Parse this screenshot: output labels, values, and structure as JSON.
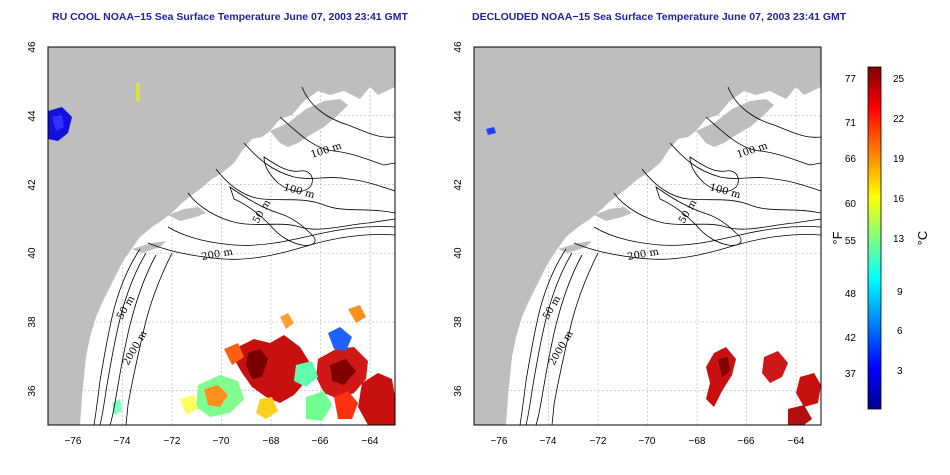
{
  "titles": {
    "left": "RU COOL NOAA−15 Sea Surface Temperature June 07, 2003 23:41 GMT",
    "right": "DECLOUDED NOAA−15 Sea Surface Temperature June 07, 2003 23:41 GMT"
  },
  "axes": {
    "lat_ticks": [
      "46",
      "44",
      "42",
      "40",
      "38",
      "36"
    ],
    "lon_ticks": [
      "−76",
      "−74",
      "−72",
      "−70",
      "−68",
      "−66",
      "−64"
    ],
    "lat_range": [
      35,
      46
    ],
    "lon_range": [
      -77,
      -63
    ]
  },
  "contours": {
    "labels": [
      "100 m",
      "100 m",
      "50 m",
      "200 m",
      "50 m",
      "2000 m"
    ]
  },
  "colorbar": {
    "fahrenheit_ticks": [
      "77",
      "71",
      "66",
      "60",
      "55",
      "48",
      "42",
      "37"
    ],
    "celsius_ticks": [
      "25",
      "22",
      "19",
      "16",
      "13",
      "9",
      "6",
      "3"
    ],
    "fahrenheit_unit": "°F",
    "celsius_unit": "°C",
    "gradient_stops": [
      "#00008f",
      "#0000ff",
      "#0080ff",
      "#00ffff",
      "#80ff80",
      "#ffff00",
      "#ff8000",
      "#ff0000",
      "#800000"
    ]
  },
  "colors": {
    "land": "#bebebe",
    "ocean": "#ffffff",
    "grid": "#bfbfbf",
    "title": "#1f1fa0"
  }
}
